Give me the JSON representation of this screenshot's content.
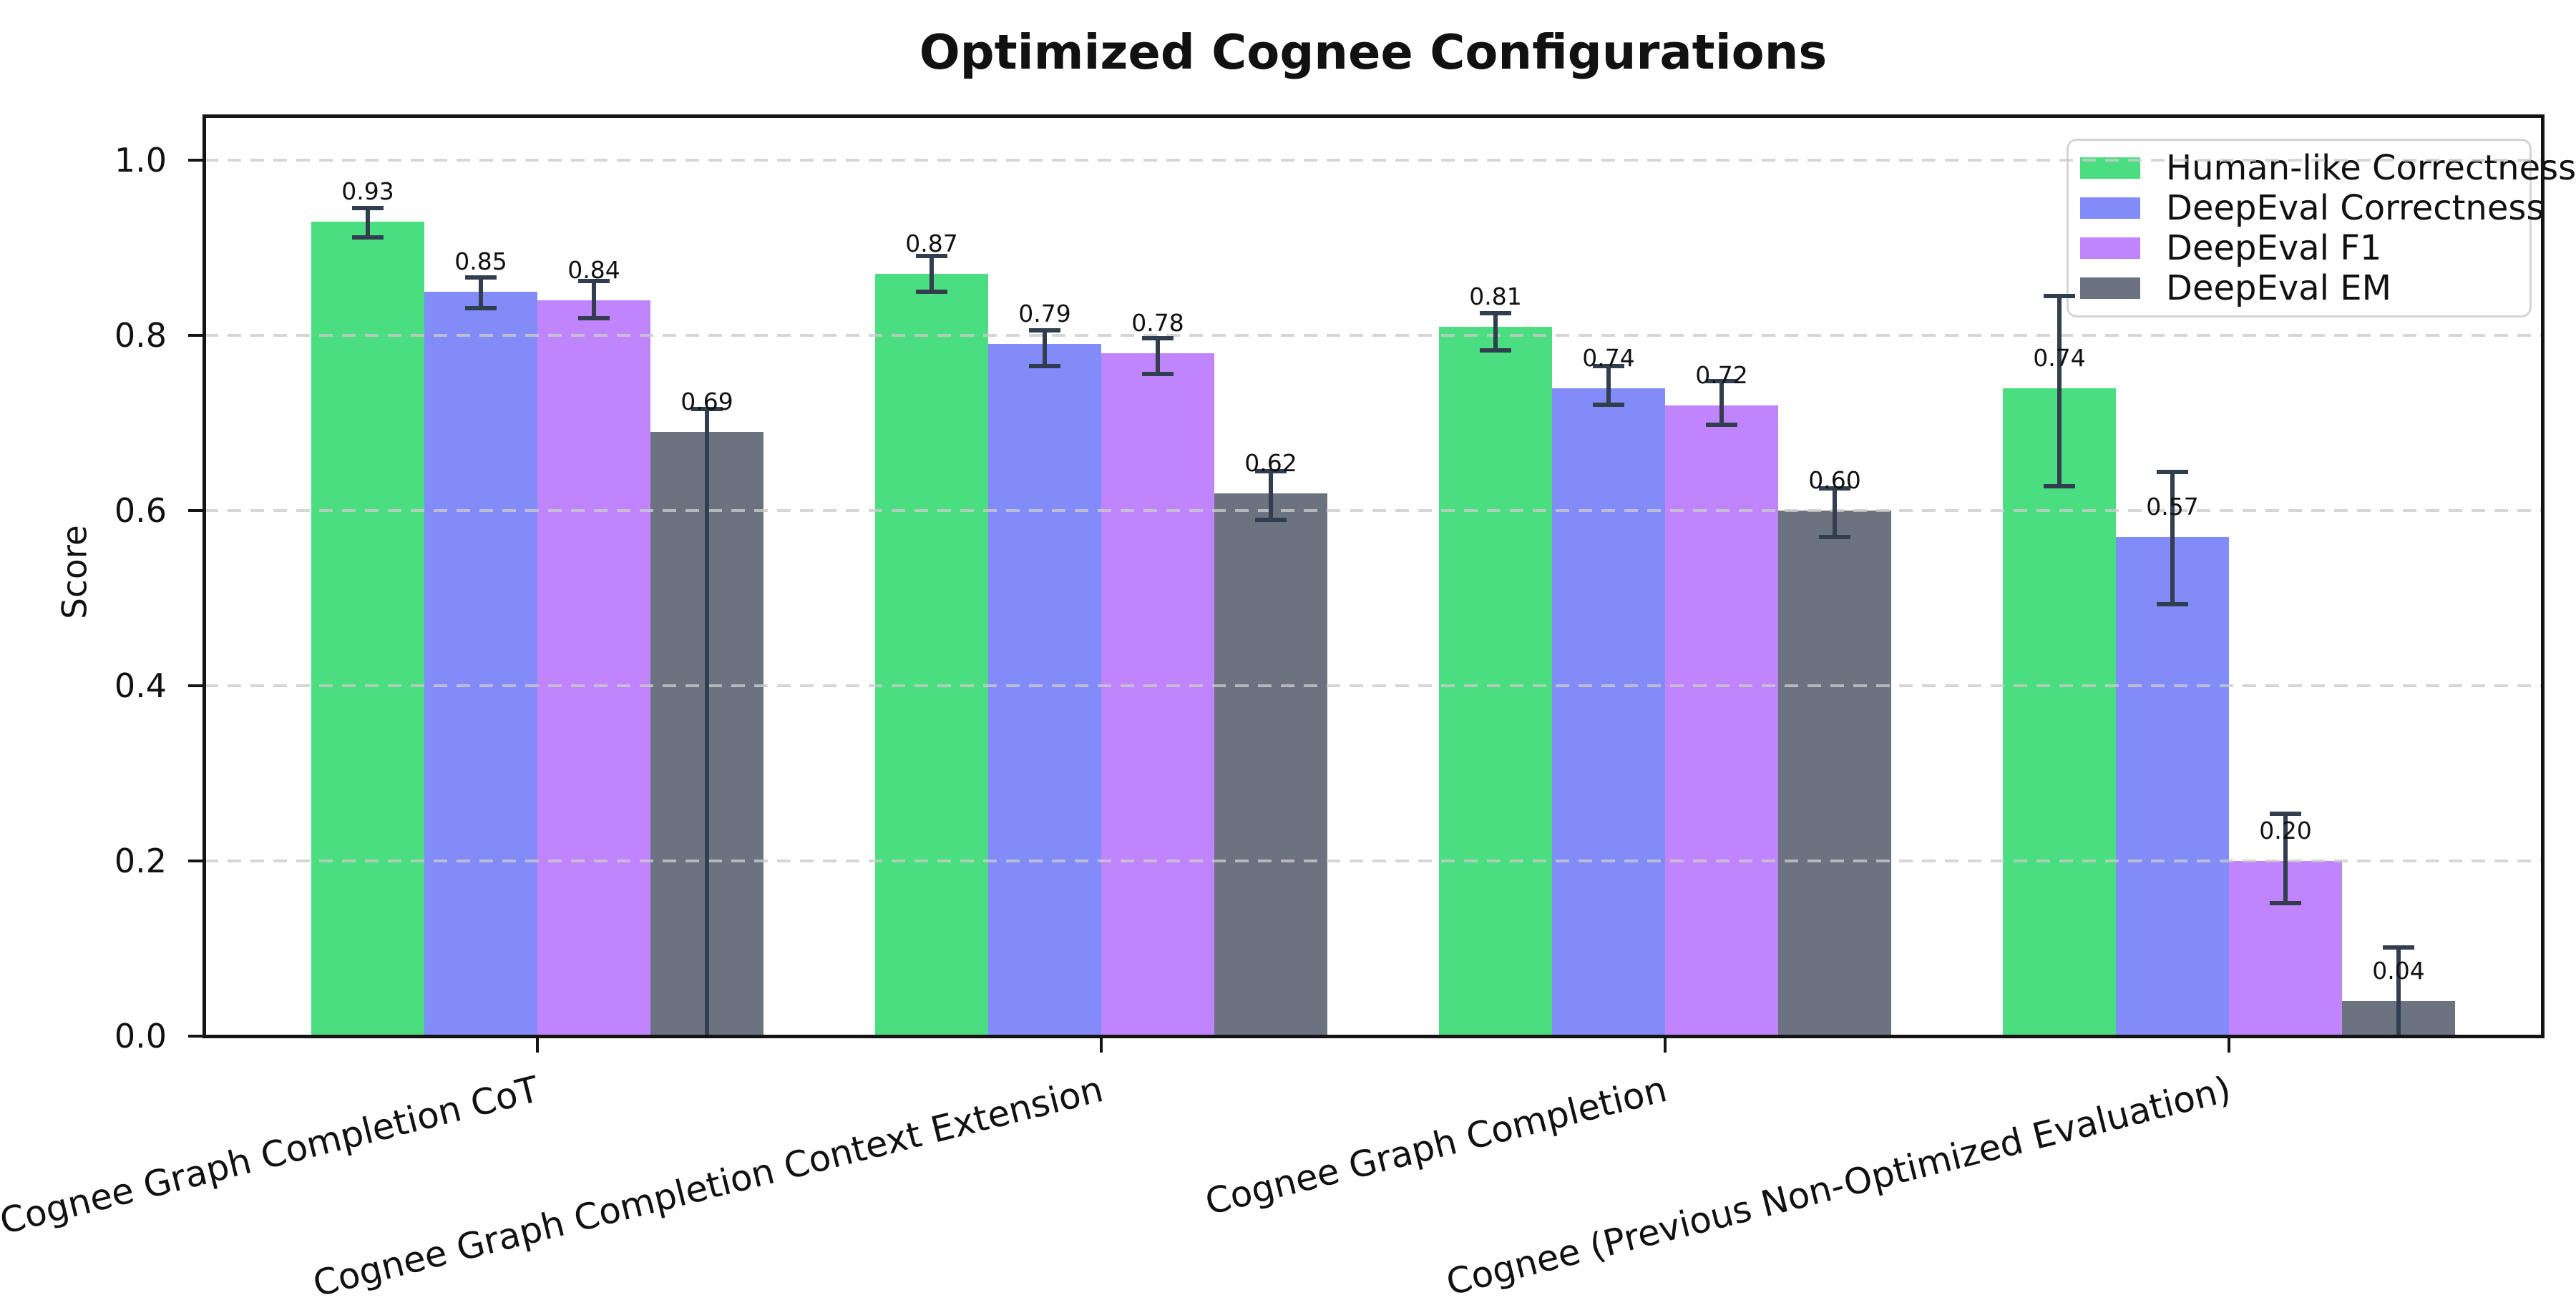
{
  "title": "Optimized Cognee Configurations",
  "chart_data": {
    "type": "bar",
    "title": "Optimized Cognee Configurations",
    "xlabel": "",
    "ylabel": "Score",
    "ylim": [
      0,
      1.05
    ],
    "ytick_values": [
      0.0,
      0.2,
      0.4,
      0.6,
      0.8,
      1.0
    ],
    "ytick_labels": [
      "0.0",
      "0.2",
      "0.4",
      "0.6",
      "0.8",
      "1.0"
    ],
    "grid": "horizontal dashed gridlines",
    "legend_position": "upper-right",
    "xtick_rotation_deg": 14,
    "categories": [
      "Cognee Graph Completion CoT",
      "Cognee Graph Completion Context Extension",
      "Cognee Graph Completion",
      "Cognee (Previous Non-Optimized Evaluation)"
    ],
    "series": [
      {
        "name": "Human-like Correctness",
        "color": "#4ade80",
        "values": [
          0.93,
          0.87,
          0.81,
          0.74
        ],
        "labels": [
          "0.93",
          "0.87",
          "0.81",
          "0.74"
        ],
        "error_low": [
          0.912,
          0.85,
          0.783,
          0.628
        ],
        "error_high": [
          0.945,
          0.891,
          0.825,
          0.845
        ]
      },
      {
        "name": "DeepEval Correctness",
        "color": "#818cf8",
        "values": [
          0.85,
          0.79,
          0.74,
          0.57
        ],
        "labels": [
          "0.85",
          "0.79",
          "0.74",
          "0.57"
        ],
        "error_low": [
          0.831,
          0.765,
          0.721,
          0.493
        ],
        "error_high": [
          0.866,
          0.806,
          0.765,
          0.644
        ]
      },
      {
        "name": "DeepEval F1",
        "color": "#c084fc",
        "values": [
          0.84,
          0.78,
          0.72,
          0.2
        ],
        "labels": [
          "0.84",
          "0.78",
          "0.72",
          "0.20"
        ],
        "error_low": [
          0.82,
          0.756,
          0.698,
          0.152
        ],
        "error_high": [
          0.862,
          0.797,
          0.748,
          0.254
        ]
      },
      {
        "name": "DeepEval EM",
        "color": "#6b7280",
        "values": [
          0.69,
          0.62,
          0.6,
          0.04
        ],
        "labels": [
          "0.69",
          "0.62",
          "0.60",
          "0.04"
        ],
        "error_low": [
          0.0,
          0.589,
          0.57,
          0.0
        ],
        "error_high": [
          0.716,
          0.645,
          0.625,
          0.101
        ]
      }
    ],
    "style": {
      "error_bar_color": "#323e4f",
      "gridline_color": "#d4d4d4",
      "axis_color": "#141414",
      "text_color": "#111111",
      "background_color": "#ffffff"
    }
  }
}
